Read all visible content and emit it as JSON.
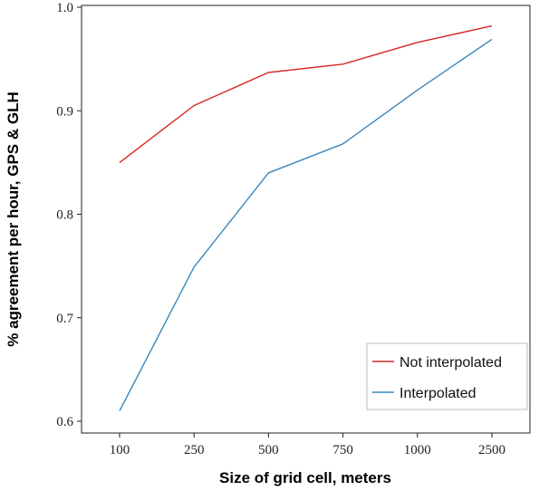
{
  "chart_data": {
    "type": "line",
    "categories": [
      "100",
      "250",
      "500",
      "750",
      "1000",
      "2500"
    ],
    "series": [
      {
        "name": "Not interpolated",
        "color": "#d62728",
        "values": [
          0.85,
          0.905,
          0.937,
          0.945,
          0.966,
          0.982
        ]
      },
      {
        "name": "Interpolated",
        "color": "#3a87bd",
        "values": [
          0.61,
          0.749,
          0.84,
          0.868,
          0.92,
          0.969
        ]
      }
    ],
    "title": "",
    "xlabel": "Size of grid cell, meters",
    "ylabel": "% agreement per hour, GPS & GLH",
    "ylim": [
      0.6,
      1.0
    ],
    "yticks": [
      "0.6",
      "0.7",
      "0.8",
      "0.9",
      "1.0"
    ],
    "grid": false,
    "legend_position": "bottom-right"
  }
}
